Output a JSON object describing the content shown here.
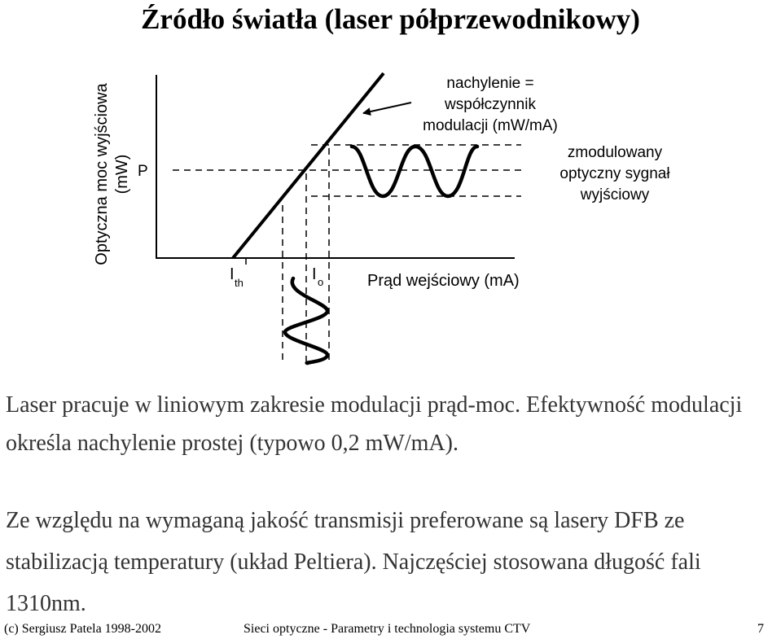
{
  "title": "Źródło światła (laser półprzewodnikowy)",
  "diagram": {
    "y_axis_label_line1": "Optyczna moc wyjściowa",
    "y_axis_label_line2": "(mW)",
    "p_label": "P",
    "ith_main": "I",
    "ith_sub": "th",
    "io_main": "I",
    "io_sub": "o",
    "x_axis_label": "Prąd wejściowy (mA)",
    "slope_label": [
      "nachylenie =",
      "współczynnik",
      "modulacji (mW/mA)"
    ],
    "output_label": [
      "zmodulowany",
      "optyczny sygnał",
      "wyjściowy"
    ]
  },
  "text": {
    "para1": "Laser pracuje w liniowym zakresie modulacji prąd-moc. Efektywność modulacji określa nachylenie prostej (typowo 0,2 mW/mA).",
    "para2": "Ze względu na wymaganą jakość transmisji preferowane są lasery DFB ze stabilizacją temperatury (układ Peltiera). Najczęściej stosowana długość fali 1310nm."
  },
  "footer": {
    "left": "(c) Sergiusz Patela 1998-2002",
    "center": "Sieci optyczne - Parametry i technologia systemu CTV",
    "page": "7"
  }
}
